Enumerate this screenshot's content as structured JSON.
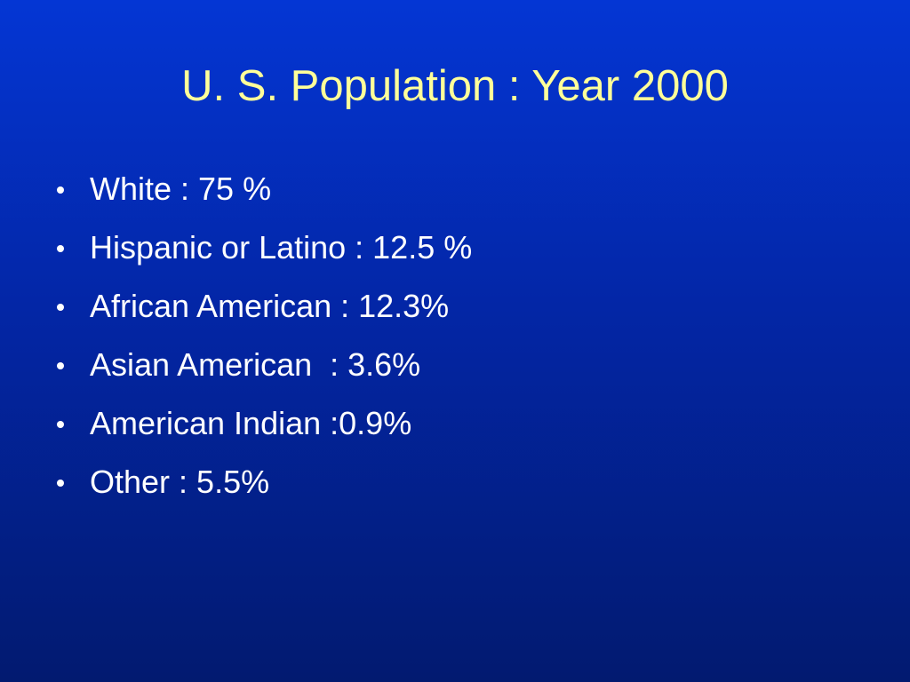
{
  "title": "U. S. Population : Year 2000",
  "bullets": [
    "White : 75 %",
    "Hispanic or Latino : 12.5 %",
    "African American : 12.3%",
    "Asian American  : 3.6%",
    "American Indian :0.9%",
    "Other : 5.5%"
  ]
}
